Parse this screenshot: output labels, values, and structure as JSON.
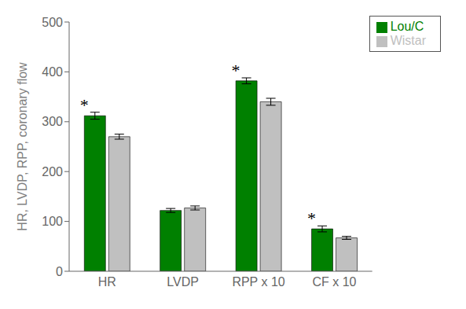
{
  "chart_data": {
    "type": "bar",
    "categories": [
      "HR",
      "LVDP",
      "RPP x 10",
      "CF x 10"
    ],
    "series": [
      {
        "name": "Lou/C",
        "color": "#008000",
        "values": [
          312,
          122,
          382,
          85
        ],
        "errors": [
          7,
          4,
          6,
          6
        ]
      },
      {
        "name": "Wistar",
        "color": "#c0c0c0",
        "values": [
          270,
          127,
          340,
          67
        ],
        "errors": [
          5,
          4,
          7,
          3
        ]
      }
    ],
    "ylabel": "HR, LVDP, RPP, coronary flow",
    "ylim": [
      0,
      500
    ],
    "yticks": [
      0,
      100,
      200,
      300,
      400,
      500
    ],
    "grid": false,
    "legend": "upper right",
    "annotations": [
      {
        "text": "*",
        "category": "HR"
      },
      {
        "text": "*",
        "category": "RPP x 10"
      },
      {
        "text": "*",
        "category": "CF x 10"
      }
    ]
  }
}
